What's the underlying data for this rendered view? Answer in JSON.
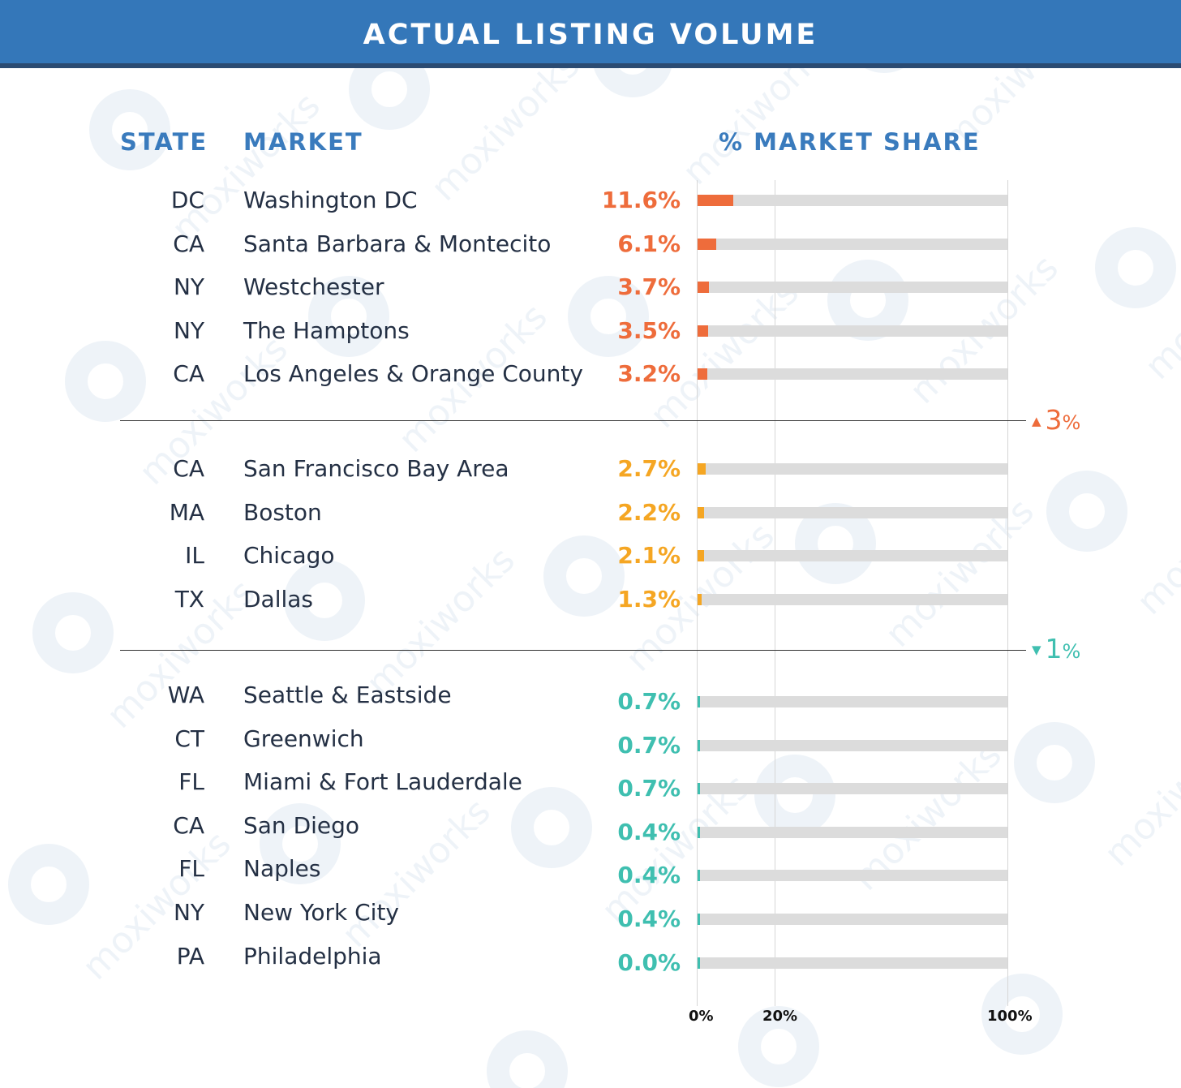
{
  "header": {
    "title": "ACTUAL LISTING VOLUME"
  },
  "columns": {
    "state": "STATE",
    "market": "MARKET",
    "share": "% MARKET SHARE"
  },
  "thresholds": [
    {
      "direction": "up",
      "symbol": "▲",
      "value": "3",
      "unit": "%",
      "color": "#ee6c3b"
    },
    {
      "direction": "down",
      "symbol": "▼",
      "value": "1",
      "unit": "%",
      "color": "#3fbfb0"
    }
  ],
  "colors": {
    "header_bg": "#3477b9",
    "high": "#ee6c3b",
    "mid": "#f5a623",
    "low": "#3fbfb0",
    "track": "#dcdcdc",
    "column_head": "#3a7bbd"
  },
  "watermark": {
    "text": "moxiworks"
  },
  "chart_data": {
    "type": "bar",
    "title": "ACTUAL LISTING VOLUME",
    "xlabel": "% MARKET SHARE",
    "ylabel": "",
    "xlim": [
      0,
      100
    ],
    "x_ticks": [
      "0%",
      "20%",
      "100%"
    ],
    "grid_at": [
      0,
      20,
      100
    ],
    "groups": [
      {
        "tier": "high",
        "rows": [
          {
            "state": "DC",
            "market": "Washington DC",
            "value": 11.6,
            "label": "11.6%"
          },
          {
            "state": "CA",
            "market": "Santa Barbara & Montecito",
            "value": 6.1,
            "label": "6.1%"
          },
          {
            "state": "NY",
            "market": "Westchester",
            "value": 3.7,
            "label": "3.7%"
          },
          {
            "state": "NY",
            "market": "The Hamptons",
            "value": 3.5,
            "label": "3.5%"
          },
          {
            "state": "CA",
            "market": "Los Angeles & Orange County",
            "value": 3.2,
            "label": "3.2%"
          }
        ]
      },
      {
        "tier": "mid",
        "rows": [
          {
            "state": "CA",
            "market": "San Francisco Bay Area",
            "value": 2.7,
            "label": "2.7%"
          },
          {
            "state": "MA",
            "market": "Boston",
            "value": 2.2,
            "label": "2.2%"
          },
          {
            "state": "IL",
            "market": "Chicago",
            "value": 2.1,
            "label": "2.1%"
          },
          {
            "state": "TX",
            "market": "Dallas",
            "value": 1.3,
            "label": "1.3%"
          }
        ]
      },
      {
        "tier": "low",
        "rows": [
          {
            "state": "WA",
            "market": "Seattle & Eastside",
            "value": 0.7,
            "label": "0.7%"
          },
          {
            "state": "CT",
            "market": "Greenwich",
            "value": 0.7,
            "label": "0.7%"
          },
          {
            "state": "FL",
            "market": "Miami & Fort Lauderdale",
            "value": 0.7,
            "label": "0.7%"
          },
          {
            "state": "CA",
            "market": "San Diego",
            "value": 0.4,
            "label": "0.4%"
          },
          {
            "state": "FL",
            "market": "Naples",
            "value": 0.4,
            "label": "0.4%"
          },
          {
            "state": "NY",
            "market": "New York City",
            "value": 0.4,
            "label": "0.4%"
          },
          {
            "state": "PA",
            "market": "Philadelphia",
            "value": 0.0,
            "label": "0.0%"
          }
        ]
      }
    ]
  }
}
